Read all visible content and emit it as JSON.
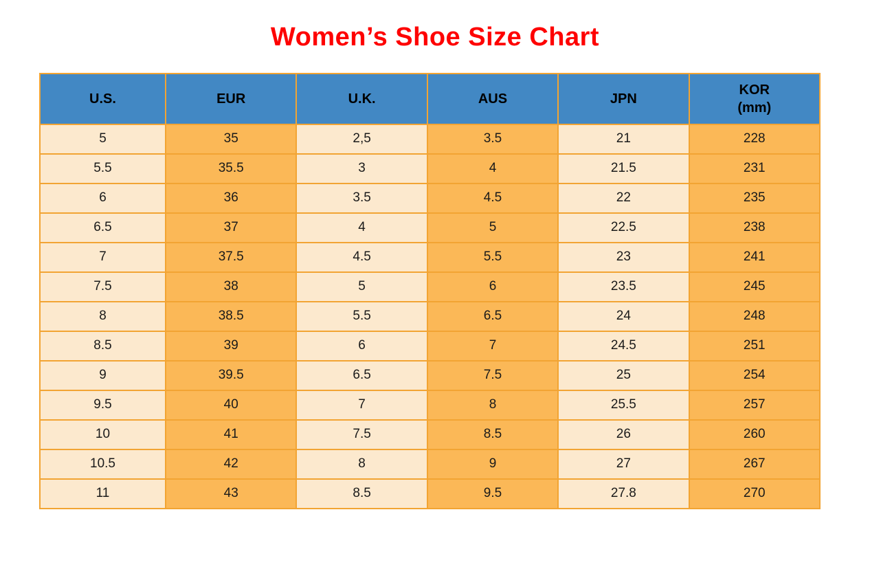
{
  "page_title": "Women’s Shoe Size Chart",
  "colors": {
    "title_color": "#FE0000",
    "header_bg": "#4288C4",
    "cell_cream": "#FCE9CE",
    "cell_orange": "#FBB857",
    "border_color": "#F2A433",
    "cell_text": "#1A1A1A",
    "page_bg": "#FFFFFF"
  },
  "table": {
    "headers": [
      {
        "label": "U.S."
      },
      {
        "label": "EUR"
      },
      {
        "label": "U.K."
      },
      {
        "label": "AUS"
      },
      {
        "label": "JPN"
      },
      {
        "label": "KOR",
        "sub": "(mm)"
      }
    ]
  },
  "chart_data": {
    "type": "table",
    "title": "Women’s Shoe Size Chart",
    "columns": [
      "U.S.",
      "EUR",
      "U.K.",
      "AUS",
      "JPN",
      "KOR (mm)"
    ],
    "rows": [
      [
        "5",
        "35",
        "2,5",
        "3.5",
        "21",
        "228"
      ],
      [
        "5.5",
        "35.5",
        "3",
        "4",
        "21.5",
        "231"
      ],
      [
        "6",
        "36",
        "3.5",
        "4.5",
        "22",
        "235"
      ],
      [
        "6.5",
        "37",
        "4",
        "5",
        "22.5",
        "238"
      ],
      [
        "7",
        "37.5",
        "4.5",
        "5.5",
        "23",
        "241"
      ],
      [
        "7.5",
        "38",
        "5",
        "6",
        "23.5",
        "245"
      ],
      [
        "8",
        "38.5",
        "5.5",
        "6.5",
        "24",
        "248"
      ],
      [
        "8.5",
        "39",
        "6",
        "7",
        "24.5",
        "251"
      ],
      [
        "9",
        "39.5",
        "6.5",
        "7.5",
        "25",
        "254"
      ],
      [
        "9.5",
        "40",
        "7",
        "8",
        "25.5",
        "257"
      ],
      [
        "10",
        "41",
        "7.5",
        "8.5",
        "26",
        "260"
      ],
      [
        "10.5",
        "42",
        "8",
        "9",
        "27",
        "267"
      ],
      [
        "11",
        "43",
        "8.5",
        "9.5",
        "27.8",
        "270"
      ]
    ],
    "column_fill_pattern": [
      "cream",
      "orange",
      "cream",
      "orange",
      "cream",
      "orange"
    ],
    "header_fill": "blue",
    "grid": true
  }
}
